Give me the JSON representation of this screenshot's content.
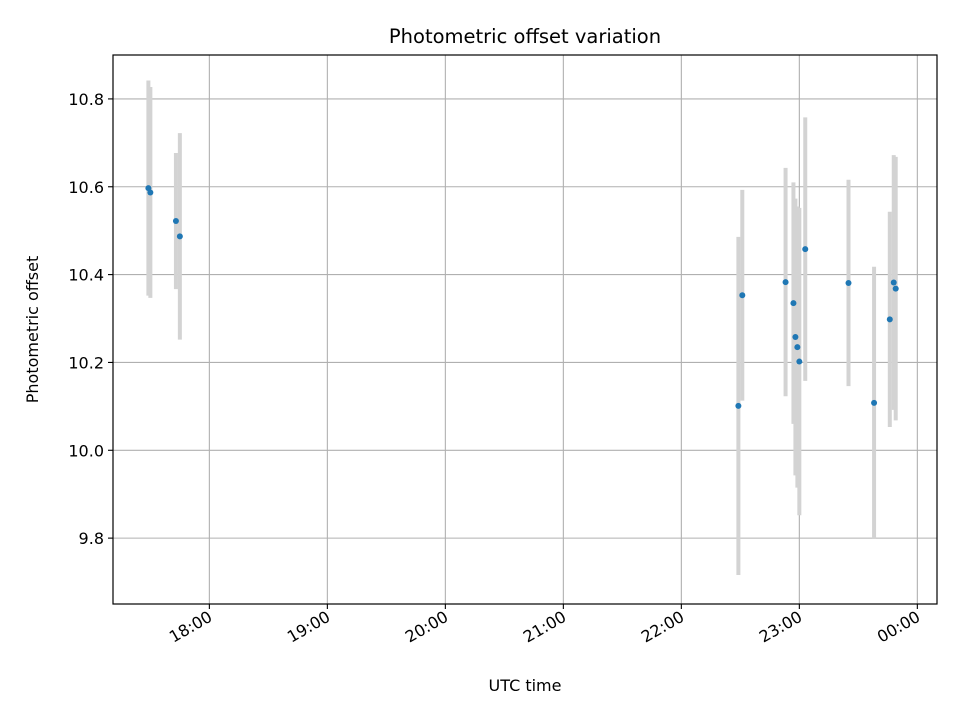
{
  "chart_data": {
    "type": "scatter",
    "title": "Photometric offset variation",
    "xlabel": "UTC time",
    "ylabel": "Photometric offset",
    "xlim": [
      "17:11",
      "00:10"
    ],
    "ylim": [
      9.65,
      10.9
    ],
    "x_ticks": [
      "18:00",
      "19:00",
      "20:00",
      "21:00",
      "22:00",
      "23:00",
      "00:00"
    ],
    "y_ticks": [
      9.8,
      10.0,
      10.2,
      10.4,
      10.6,
      10.8
    ],
    "grid": true,
    "point_color": "#1f77b4",
    "errorbar_color": "#d3d3d3",
    "points": [
      {
        "time": "17:29",
        "y": 10.597,
        "err": 0.245
      },
      {
        "time": "17:30",
        "y": 10.587,
        "err": 0.24
      },
      {
        "time": "17:43",
        "y": 10.522,
        "err": 0.155
      },
      {
        "time": "17:45",
        "y": 10.487,
        "err": 0.235
      },
      {
        "time": "22:29",
        "y": 10.101,
        "err": 0.385
      },
      {
        "time": "22:31",
        "y": 10.353,
        "err": 0.24
      },
      {
        "time": "22:53",
        "y": 10.383,
        "err": 0.26
      },
      {
        "time": "22:57",
        "y": 10.335,
        "err": 0.275
      },
      {
        "time": "22:58",
        "y": 10.258,
        "err": 0.315
      },
      {
        "time": "22:59",
        "y": 10.235,
        "err": 0.32
      },
      {
        "time": "23:00",
        "y": 10.202,
        "err": 0.35
      },
      {
        "time": "23:03",
        "y": 10.458,
        "err": 0.3
      },
      {
        "time": "23:25",
        "y": 10.381,
        "err": 0.235
      },
      {
        "time": "23:38",
        "y": 10.108,
        "err": 0.31
      },
      {
        "time": "23:46",
        "y": 10.298,
        "err": 0.245
      },
      {
        "time": "23:48",
        "y": 10.382,
        "err": 0.29
      },
      {
        "time": "23:49",
        "y": 10.368,
        "err": 0.3
      }
    ]
  }
}
